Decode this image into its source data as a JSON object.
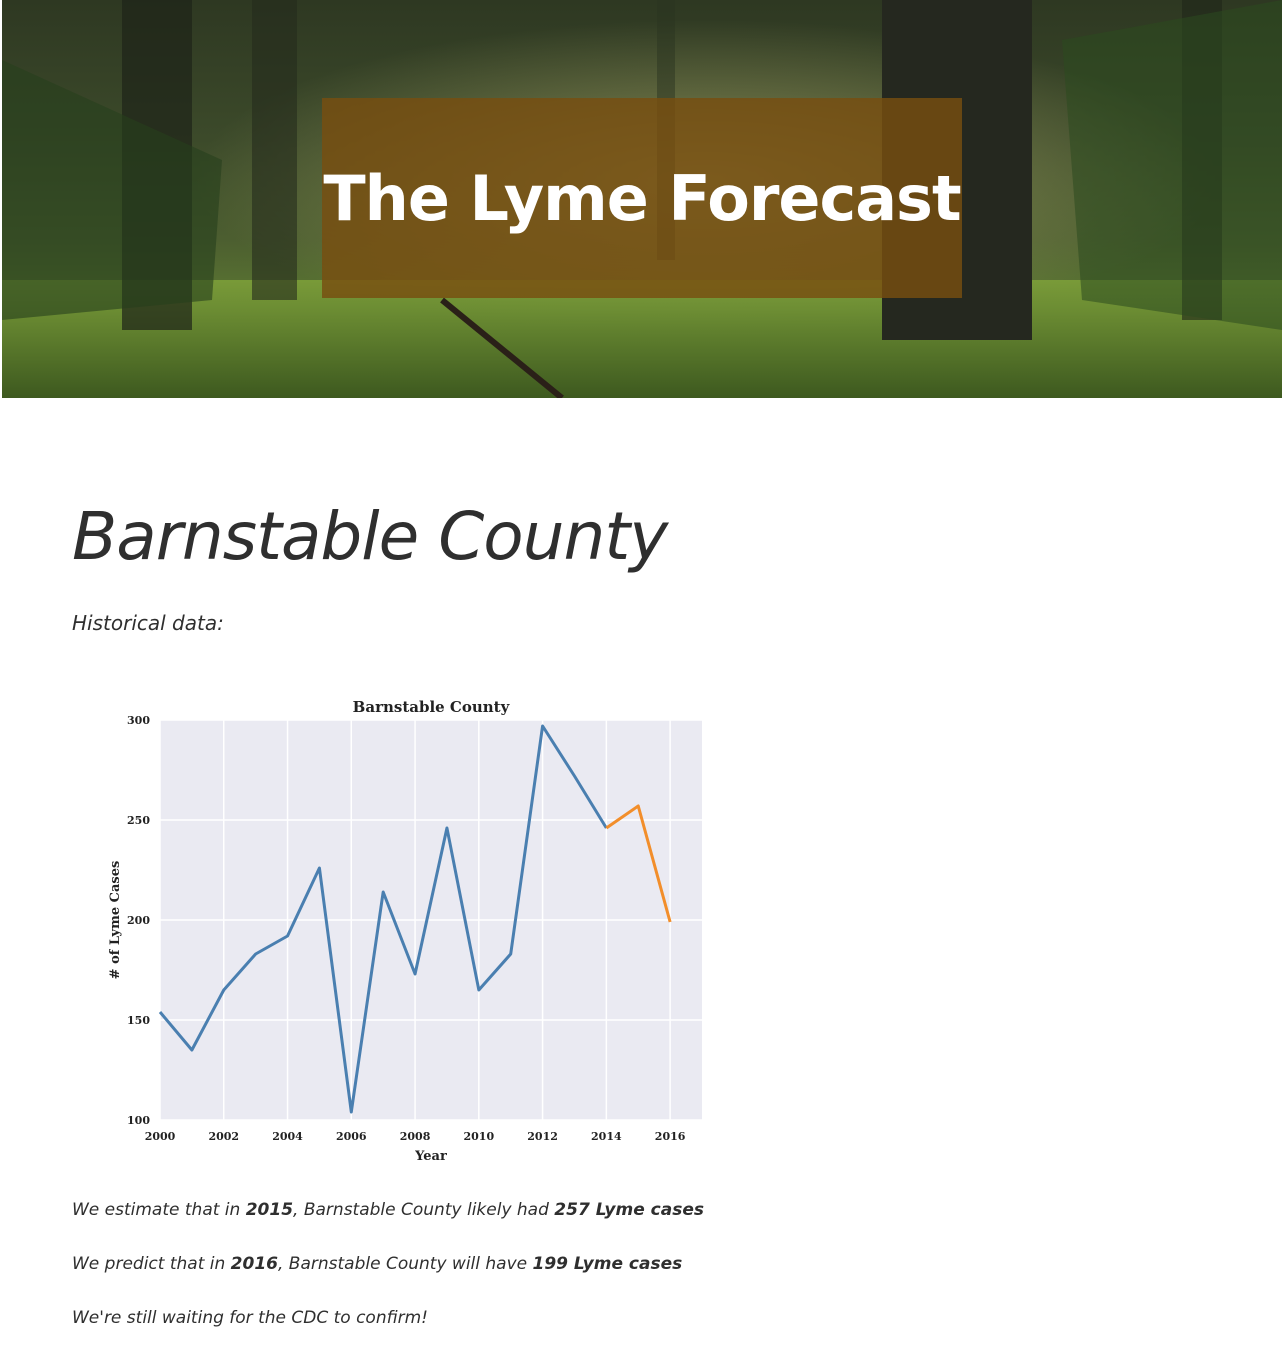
{
  "header": {
    "title": "The Lyme Forecast"
  },
  "main": {
    "county_title": "Barnstable County",
    "historical_label": "Historical data:",
    "estimate": {
      "prefix": "We estimate that in ",
      "year": "2015",
      "middle": ", Barnstable County likely had ",
      "value": "257 Lyme cases"
    },
    "prediction": {
      "prefix": "We predict that in ",
      "year": "2016",
      "middle": ", Barnstable County will have ",
      "value": "199 Lyme cases"
    },
    "waiting": "We're still waiting for the CDC to confirm!"
  },
  "chart_data": {
    "type": "line",
    "title": "Barnstable County",
    "xlabel": "Year",
    "ylabel": "# of Lyme Cases",
    "xlim": [
      2000,
      2017
    ],
    "ylim": [
      100,
      300
    ],
    "xticks": [
      2000,
      2002,
      2004,
      2006,
      2008,
      2010,
      2012,
      2014,
      2016
    ],
    "yticks": [
      100,
      150,
      200,
      250,
      300
    ],
    "grid": true,
    "series": [
      {
        "color": "#4a7fb0",
        "x": [
          2000,
          2001,
          2002,
          2003,
          2004,
          2005,
          2006,
          2007,
          2008,
          2009,
          2010,
          2011,
          2012,
          2013,
          2014
        ],
        "y": [
          154,
          135,
          165,
          183,
          192,
          226,
          104,
          214,
          173,
          246,
          165,
          183,
          297,
          272,
          246
        ]
      },
      {
        "color": "#f28e2b",
        "x": [
          2014,
          2015,
          2016
        ],
        "y": [
          246,
          257,
          199
        ]
      }
    ]
  }
}
